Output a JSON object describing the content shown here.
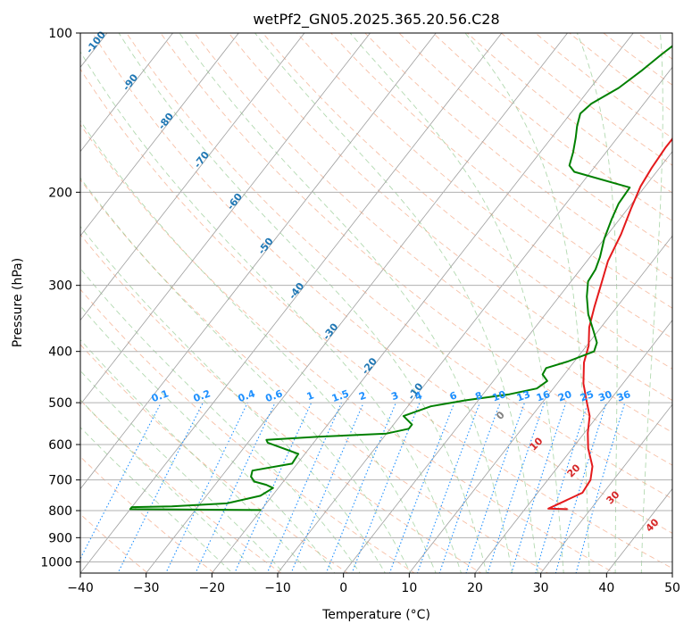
{
  "chart_data": {
    "type": "line",
    "title": "wetPf2_GN05.2025.365.20.56.C28",
    "xlabel": "Temperature (°C)",
    "ylabel": "Pressure (hPa)",
    "xlim": [
      -40,
      50
    ],
    "ylim": [
      1050,
      100
    ],
    "yscale": "log",
    "grid": true,
    "x_ticks": [
      -40,
      -30,
      -20,
      -10,
      0,
      10,
      20,
      30,
      40,
      50
    ],
    "y_ticks": [
      100,
      200,
      300,
      400,
      500,
      600,
      700,
      800,
      900,
      1000
    ],
    "series": [
      {
        "color": "#e41a1c",
        "points": [
          [
            26.5,
            795
          ],
          [
            23.5,
            793
          ],
          [
            26.8,
            740
          ],
          [
            26.5,
            700
          ],
          [
            25.2,
            660
          ],
          [
            22.4,
            610
          ],
          [
            20.5,
            570
          ],
          [
            18.8,
            530
          ],
          [
            16.8,
            500
          ],
          [
            14.0,
            460
          ],
          [
            11.6,
            420
          ],
          [
            10.3,
            390
          ],
          [
            8.2,
            360
          ],
          [
            6.6,
            330
          ],
          [
            5.0,
            300
          ],
          [
            3.2,
            270
          ],
          [
            2.0,
            240
          ],
          [
            0.5,
            215
          ],
          [
            -0.7,
            195
          ],
          [
            -1.2,
            180
          ],
          [
            -1.5,
            165
          ],
          [
            -1.5,
            155
          ],
          [
            -1.2,
            145
          ],
          [
            -0.5,
            135
          ],
          [
            0.3,
            125
          ],
          [
            1.0,
            115
          ],
          [
            1.9,
            108
          ],
          [
            3.2,
            100
          ]
        ]
      },
      {
        "color": "#008000",
        "points": [
          [
            -20.0,
            798
          ],
          [
            -40.0,
            795
          ],
          [
            -40.0,
            788
          ],
          [
            -34.0,
            785
          ],
          [
            -26.0,
            775
          ],
          [
            -21.8,
            750
          ],
          [
            -20.8,
            725
          ],
          [
            -22.2,
            715
          ],
          [
            -24.4,
            705
          ],
          [
            -25.5,
            690
          ],
          [
            -26.0,
            672
          ],
          [
            -20.8,
            652
          ],
          [
            -21.0,
            625
          ],
          [
            -27.0,
            595
          ],
          [
            -27.5,
            588
          ],
          [
            -20.0,
            580
          ],
          [
            -10.0,
            572
          ],
          [
            -7.2,
            560
          ],
          [
            -7.2,
            550
          ],
          [
            -9.5,
            530
          ],
          [
            -6.5,
            508
          ],
          [
            -2.0,
            495
          ],
          [
            4.0,
            482
          ],
          [
            7.5,
            470
          ],
          [
            8.2,
            455
          ],
          [
            6.7,
            442
          ],
          [
            6.5,
            430
          ],
          [
            9.0,
            418
          ],
          [
            11.8,
            400
          ],
          [
            11.2,
            385
          ],
          [
            9.2,
            365
          ],
          [
            6.5,
            340
          ],
          [
            4.2,
            315
          ],
          [
            2.6,
            295
          ],
          [
            2.3,
            280
          ],
          [
            1.5,
            265
          ],
          [
            0.0,
            245
          ],
          [
            -1.2,
            225
          ],
          [
            -2.0,
            210
          ],
          [
            -2.2,
            196
          ],
          [
            -12.5,
            183
          ],
          [
            -14.0,
            178
          ],
          [
            -15.0,
            168
          ],
          [
            -16.3,
            158
          ],
          [
            -17.5,
            150
          ],
          [
            -18.5,
            142
          ],
          [
            -18.0,
            136
          ],
          [
            -15.7,
            127
          ],
          [
            -14.3,
            118
          ],
          [
            -13.2,
            110
          ],
          [
            -12.0,
            103
          ],
          [
            -11.5,
            100
          ]
        ]
      }
    ],
    "isotherm_labels": [
      "-100",
      "-90",
      "-80",
      "-70",
      "-60",
      "-50",
      "-40",
      "-30",
      "-20",
      "-10"
    ],
    "mixing_ratio_labels": [
      "0.1",
      "0.2",
      "0.4",
      "0.6",
      "1",
      "1.5",
      "2",
      "3",
      "4",
      "6",
      "8",
      "10",
      "13",
      "16",
      "20",
      "25",
      "30",
      "36"
    ],
    "red_labels": [
      "0",
      "10",
      "20",
      "30",
      "40"
    ]
  }
}
